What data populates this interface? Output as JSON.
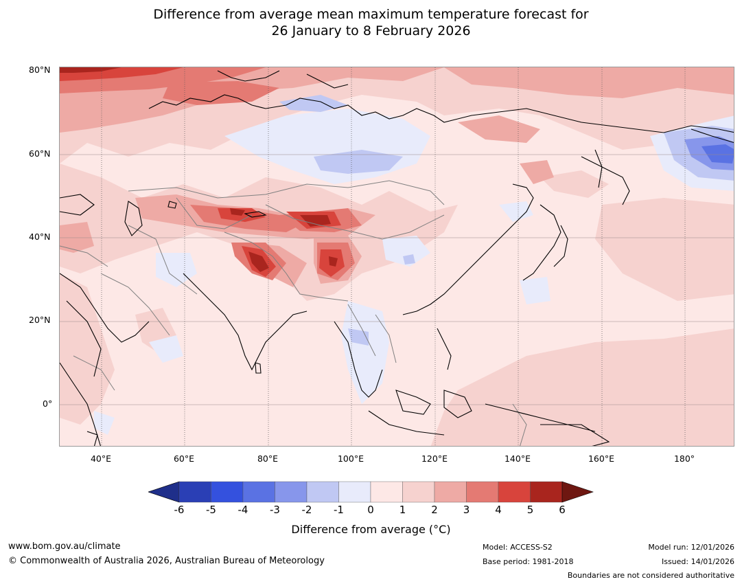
{
  "title": {
    "line1": "Difference from average mean maximum temperature forecast for",
    "line2": "26 January to 8 February 2026"
  },
  "map": {
    "lat_labels": [
      "80°N",
      "60°N",
      "40°N",
      "20°N",
      "0°"
    ],
    "lon_labels": [
      "40°E",
      "60°E",
      "80°E",
      "100°E",
      "120°E",
      "140°E",
      "160°E",
      "180°"
    ],
    "extent": {
      "lon": [
        30,
        192
      ],
      "lat": [
        -10,
        81
      ]
    }
  },
  "legend": {
    "ticks": [
      "-6",
      "-5",
      "-4",
      "-3",
      "-2",
      "-1",
      "0",
      "1",
      "2",
      "3",
      "4",
      "5",
      "6"
    ],
    "colors": [
      "#1f2f8a",
      "#2a3fb5",
      "#3451de",
      "#5a72e3",
      "#8796eb",
      "#c0c8f3",
      "#e8ebfb",
      "#fde8e6",
      "#f6d2cf",
      "#eeaaa5",
      "#e47a73",
      "#d8443c",
      "#a9251e",
      "#6e1711"
    ],
    "title": "Difference from average (°C)"
  },
  "footer": {
    "url": "www.bom.gov.au/climate",
    "copyright": "© Commonwealth of Australia 2026, Australian Bureau of Meteorology",
    "model": "Model: ACCESS-S2",
    "base_period": "Base period: 1981-2018",
    "model_run": "Model run: 12/01/2026",
    "issued": "Issued: 14/01/2026",
    "disclaimer": "Boundaries are not considered authoritative"
  }
}
